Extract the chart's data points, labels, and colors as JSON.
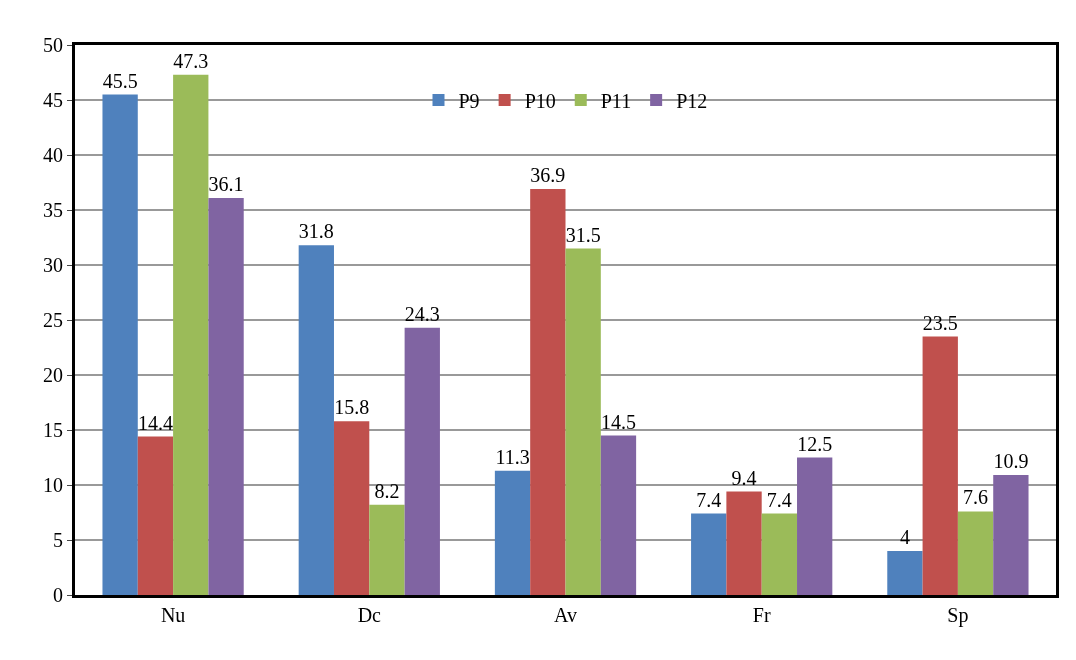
{
  "chart_data": {
    "type": "bar",
    "categories": [
      "Nu",
      "Dc",
      "Av",
      "Fr",
      "Sp"
    ],
    "series": [
      {
        "name": "P9",
        "color": "#4f81bd",
        "values": [
          45.5,
          31.8,
          11.3,
          7.4,
          4
        ]
      },
      {
        "name": "P10",
        "color": "#c0504d",
        "values": [
          14.4,
          15.8,
          36.9,
          9.4,
          23.5
        ]
      },
      {
        "name": "P11",
        "color": "#9bbb59",
        "values": [
          47.3,
          8.2,
          31.5,
          7.4,
          7.6
        ]
      },
      {
        "name": "P12",
        "color": "#8064a2",
        "values": [
          36.1,
          24.3,
          14.5,
          12.5,
          10.9
        ]
      }
    ],
    "ylim": [
      0,
      50
    ],
    "yticks": [
      0,
      5,
      10,
      15,
      20,
      25,
      30,
      35,
      40,
      45,
      50
    ],
    "grid": "y",
    "legend": "top",
    "data_labels": true
  }
}
